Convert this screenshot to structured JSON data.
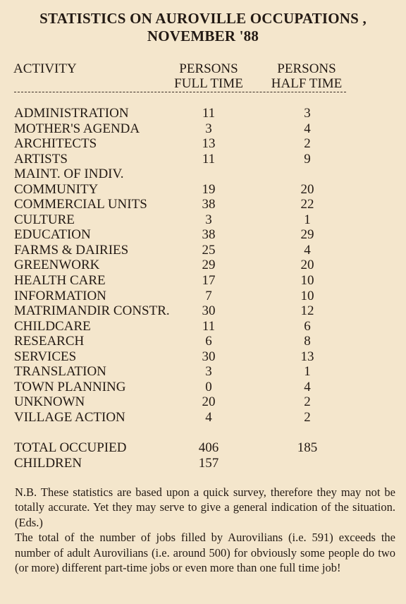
{
  "title_line1": "STATISTICS ON AUROVILLE OCCUPATIONS ,",
  "title_line2": "NOVEMBER '88",
  "headers": {
    "activity": "ACTIVITY",
    "full_time_1": "PERSONS",
    "full_time_2": "FULL TIME",
    "half_time_1": "PERSONS",
    "half_time_2": "HALF TIME"
  },
  "rows": [
    {
      "activity": "ADMINISTRATION",
      "full": "11",
      "half": "3"
    },
    {
      "activity": "MOTHER'S AGENDA",
      "full": "3",
      "half": "4"
    },
    {
      "activity": "ARCHITECTS",
      "full": "13",
      "half": "2"
    },
    {
      "activity": "ARTISTS",
      "full": "11",
      "half": "9"
    },
    {
      "activity": "MAINT. OF INDIV.",
      "full": "",
      "half": ""
    },
    {
      "activity": "COMMUNITY",
      "full": "19",
      "half": "20"
    },
    {
      "activity": "COMMERCIAL UNITS",
      "full": "38",
      "half": "22"
    },
    {
      "activity": "CULTURE",
      "full": "3",
      "half": "1"
    },
    {
      "activity": "EDUCATION",
      "full": "38",
      "half": "29"
    },
    {
      "activity": "FARMS & DAIRIES",
      "full": "25",
      "half": "4"
    },
    {
      "activity": "GREENWORK",
      "full": "29",
      "half": "20"
    },
    {
      "activity": "HEALTH CARE",
      "full": "17",
      "half": "10"
    },
    {
      "activity": "INFORMATION",
      "full": "7",
      "half": "10"
    },
    {
      "activity": "MATRIMANDIR CONSTR.",
      "full": "30",
      "half": "12"
    },
    {
      "activity": "CHILDCARE",
      "full": "11",
      "half": "6"
    },
    {
      "activity": "RESEARCH",
      "full": "6",
      "half": "8"
    },
    {
      "activity": "SERVICES",
      "full": "30",
      "half": "13"
    },
    {
      "activity": "TRANSLATION",
      "full": "3",
      "half": "1"
    },
    {
      "activity": "TOWN PLANNING",
      "full": "0",
      "half": "4"
    },
    {
      "activity": "UNKNOWN",
      "full": "20",
      "half": "2"
    },
    {
      "activity": "VILLAGE ACTION",
      "full": "4",
      "half": "2"
    }
  ],
  "totals": [
    {
      "activity": "TOTAL OCCUPIED",
      "full": "406",
      "half": "185"
    },
    {
      "activity": "CHILDREN",
      "full": "157",
      "half": ""
    }
  ],
  "note_1": "N.B. These statistics are based upon a quick survey, therefore they may not be totally accurate. Yet they may serve to give a general indication of the situation. (Eds.)",
  "note_2": "The total of the number of jobs filled by Aurovilians (i.e. 591) exceeds the number of adult Aurovilians (i.e. around 500) for obviously some people do two (or more) different part-time jobs or even more than one full time job!"
}
